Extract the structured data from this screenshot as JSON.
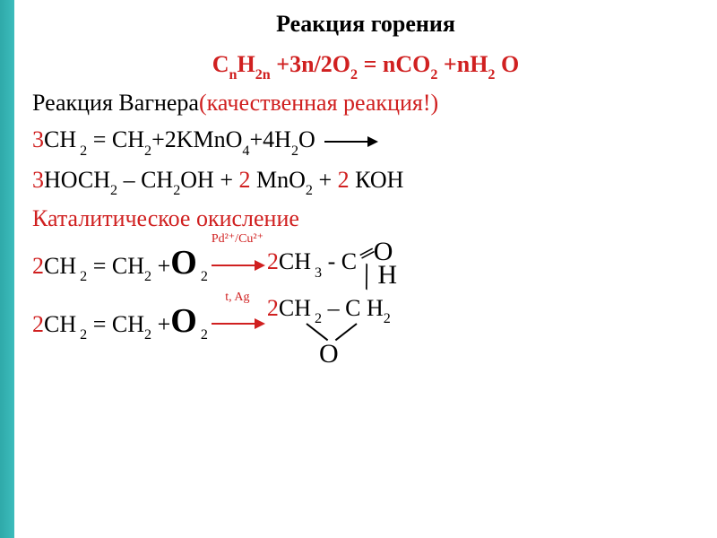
{
  "title": "Реакция горения",
  "combustion_eq": {
    "lhs_1": "С",
    "lhs_1_sub": "n",
    "lhs_2": "Н",
    "lhs_2_sub": "2n",
    "plus1": " +3n/2",
    "O2": "О",
    "O2_sub": "2",
    "equals": " = n",
    "CO2_C": "CО",
    "CO2_sub": "2",
    "plus2": " +n",
    "H2O_H": "Н",
    "H2O_sub": "2",
    "H2O_O": " О",
    "color": "#d02020",
    "fontsize": 26
  },
  "wagner_label": {
    "black": "Реакция Вагнера",
    "red": "(качественная реакция!)",
    "fontsize": 26
  },
  "wagner_eq1": {
    "coef3": "3",
    "CH": "СН",
    "sub2a": " 2",
    "eq": " = ",
    "CH2": "СН",
    "sub2b": "2",
    "plus1": "+2",
    "KMnO": "KMnO",
    "sub4": "4",
    "plus2": "+4",
    "H": "Н",
    "sub2c": "2",
    "O": "О",
    "fontsize": 26
  },
  "wagner_eq2": {
    "coef3": "3",
    "HOCH": "НОСН",
    "sub2a": "2",
    "dash": " – ",
    "CH2OH_CH": "СН",
    "sub2b": "2",
    "OH": "ОН",
    "plus1": " + ",
    "coef2a": "2",
    "MnO": " MnO",
    "sub2c": "2",
    "plus2": "  + ",
    "coef2b": "2",
    "KOH": " КОН",
    "fontsize": 26
  },
  "catalytic_label": "Каталитическое окисление",
  "rxn3": {
    "coef2": "2",
    "CH": "СН",
    "sub2a": " 2",
    "eq": " = ",
    "CH2": "СН",
    "sub2b": "2",
    "plus": " +",
    "O": "О",
    "O_sub": " 2",
    "catalyst": "Pd²⁺/Cu²⁺",
    "prod_coef": "2",
    "prod_CH": "СН",
    "prod_sub3": " 3",
    "prod_dash": " - ",
    "prod_C": "С",
    "aldehyde_O": "О",
    "aldehyde_H": "Н",
    "fontsize": 26
  },
  "rxn4": {
    "coef2": "2",
    "CH": "СН",
    "sub2a": " 2",
    "eq": " = ",
    "CH2": "СН",
    "sub2b": "2",
    "plus": " +",
    "O": "О",
    "O_sub": " 2",
    "catalyst": "t, Ag",
    "prod_coef": "2",
    "prod_CH1": "СН",
    "prod_sub2a": " 2",
    "prod_dash": " – ",
    "prod_CH2": "С Н",
    "prod_sub2b": "2",
    "epoxide_O": "О",
    "fontsize": 26
  },
  "colors": {
    "red": "#d02020",
    "black": "#000000",
    "teal": "#2fa9a9",
    "background": "#ffffff"
  }
}
